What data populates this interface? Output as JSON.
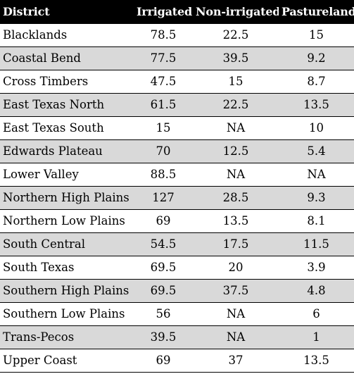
{
  "table": {
    "headers": [
      "District",
      "Irrigated",
      "Non-irrigated",
      "Pastureland"
    ],
    "rows": [
      [
        "Blacklands",
        "78.5",
        "22.5",
        "15"
      ],
      [
        "Coastal Bend",
        "77.5",
        "39.5",
        "9.2"
      ],
      [
        "Cross Timbers",
        "47.5",
        "15",
        "8.7"
      ],
      [
        "East Texas North",
        "61.5",
        "22.5",
        "13.5"
      ],
      [
        "East Texas South",
        "15",
        "NA",
        "10"
      ],
      [
        "Edwards Plateau",
        "70",
        "12.5",
        "5.4"
      ],
      [
        "Lower Valley",
        "88.5",
        "NA",
        "NA"
      ],
      [
        "Northern High Plains",
        "127",
        "28.5",
        "9.3"
      ],
      [
        "Northern Low Plains",
        "69",
        "13.5",
        "8.1"
      ],
      [
        "South Central",
        "54.5",
        "17.5",
        "11.5"
      ],
      [
        "South Texas",
        "69.5",
        "20",
        "3.9"
      ],
      [
        "Southern High Plains",
        "69.5",
        "37.5",
        "4.8"
      ],
      [
        "Southern Low Plains",
        "56",
        "NA",
        "6"
      ],
      [
        "Trans-Pecos",
        "39.5",
        "NA",
        "1"
      ],
      [
        "Upper Coast",
        "69",
        "37",
        "13.5"
      ]
    ]
  },
  "colors": {
    "header_bg": "#000000",
    "header_text": "#ffffff",
    "row_alt_bg": "#d9d9d9",
    "row_bg": "#ffffff"
  }
}
